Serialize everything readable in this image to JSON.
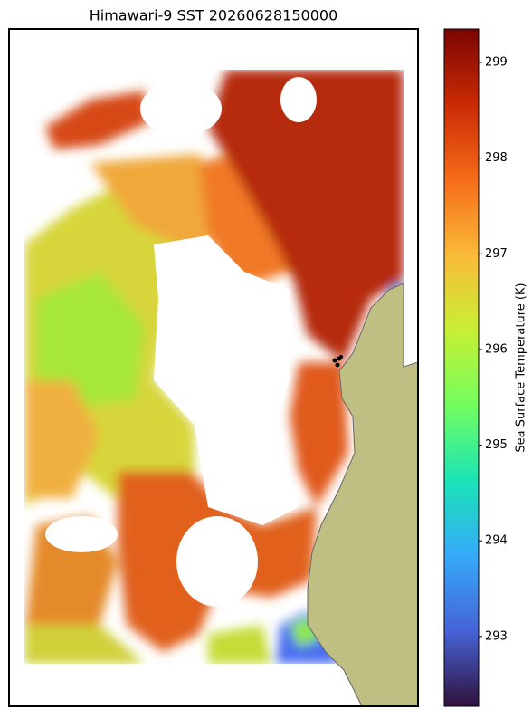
{
  "chart_data": {
    "type": "heatmap",
    "title": "Himawari-9 SST 20260628150000",
    "colorbar": {
      "label": "Sea Surface Temperature (K)",
      "colormap": "turbo",
      "lim": [
        292.27,
        299.35
      ],
      "ticks": [
        293,
        294,
        295,
        296,
        297,
        298,
        299
      ]
    }
  }
}
